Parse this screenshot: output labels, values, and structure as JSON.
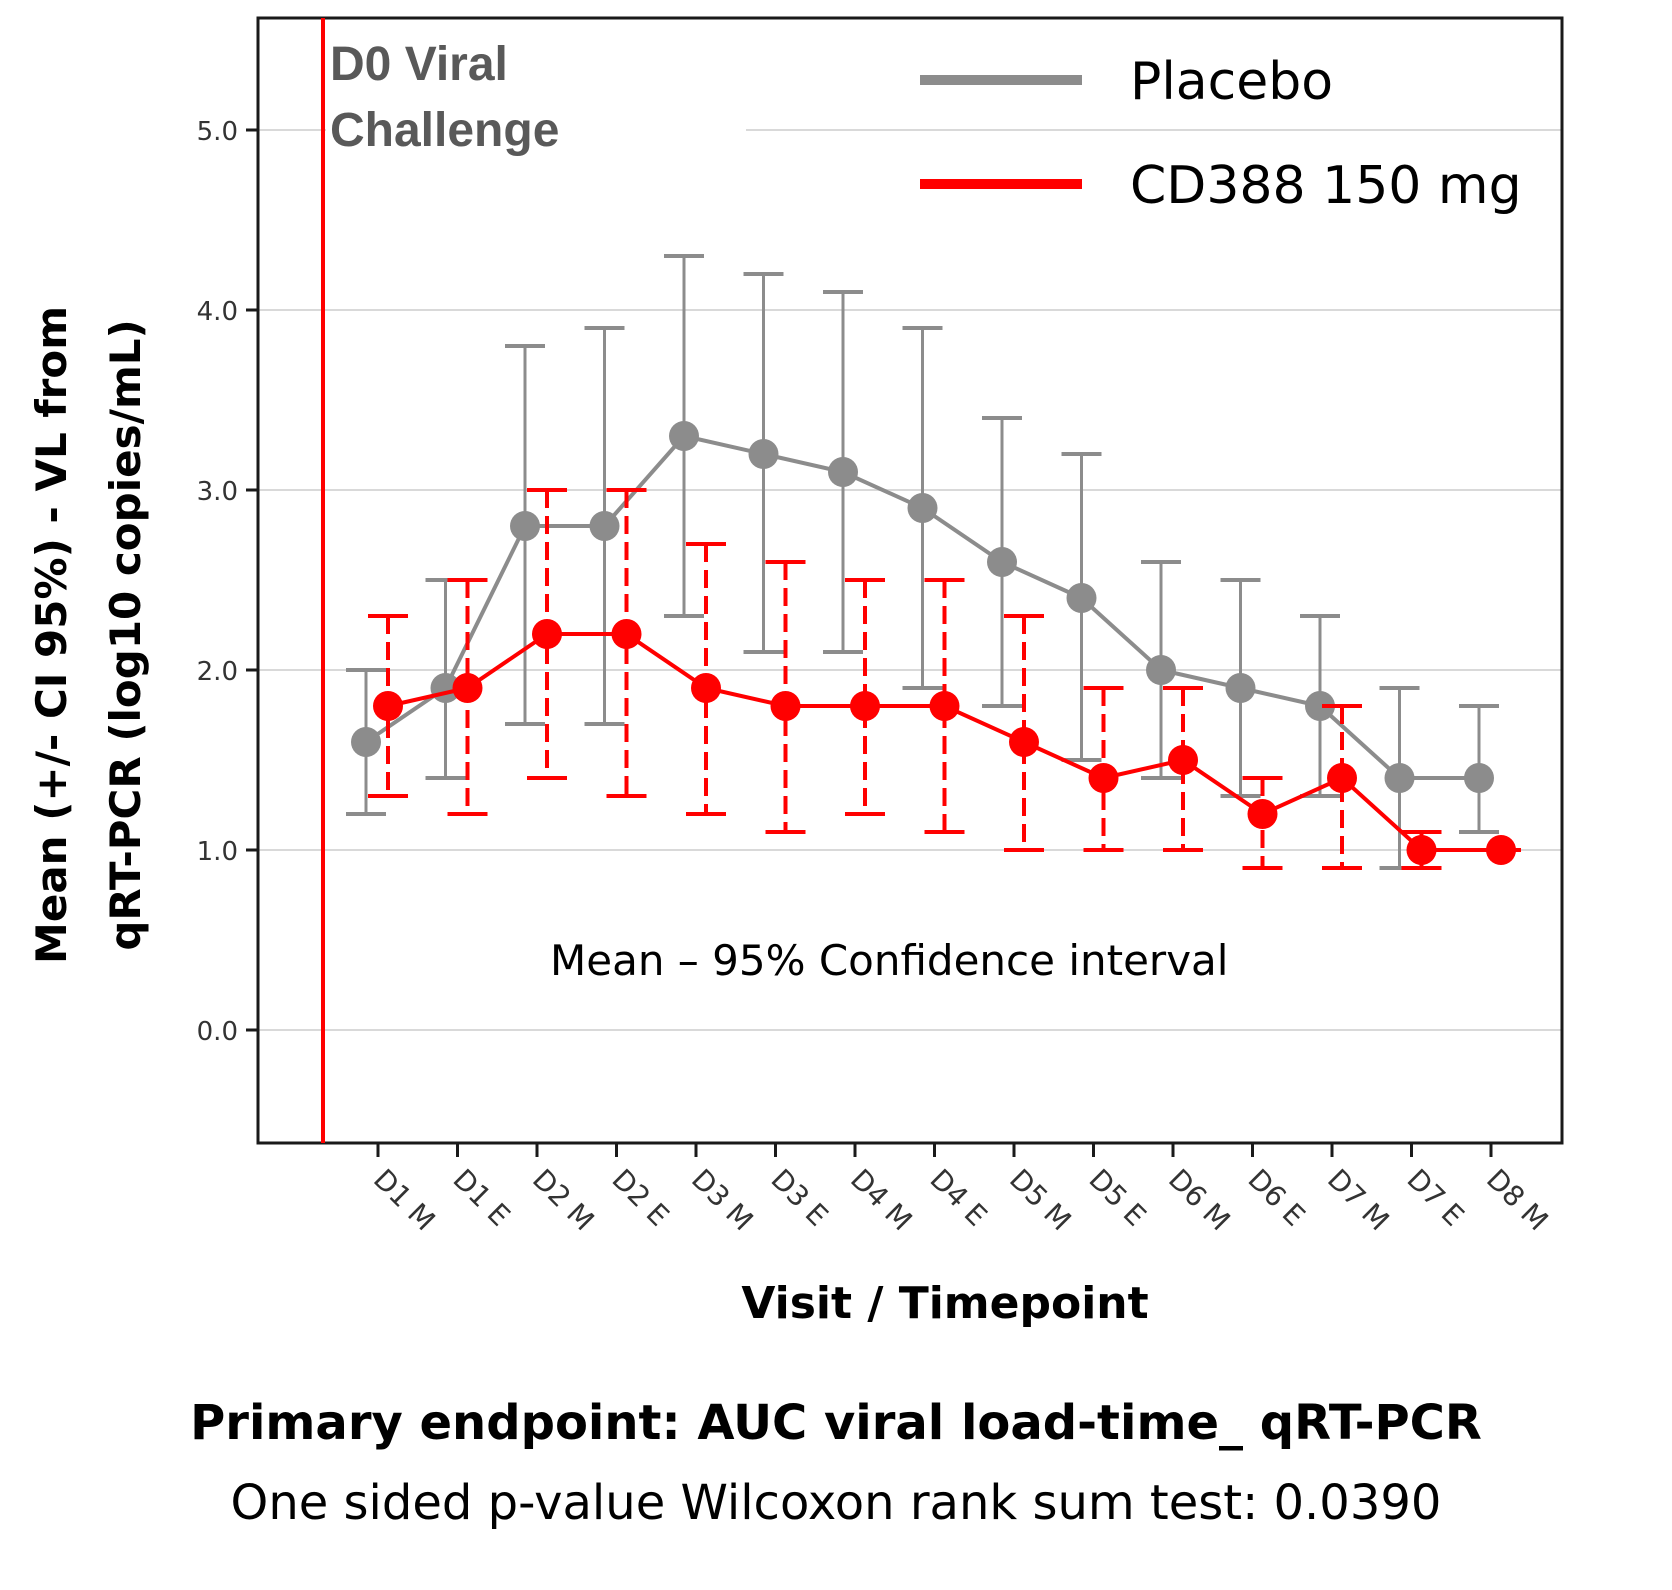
{
  "chart_data": {
    "type": "line",
    "annotation_top": "D0 Viral\nChallenge",
    "annotation_mid": "Mean – 95% Confidence interval",
    "xlabel": "Visit / Timepoint",
    "ylabel_line1": "Mean (+/- CI 95%) - VL from",
    "ylabel_line2": "qRT-PCR (log10 copies/mL)",
    "ylim": [
      -0.6,
      5.7
    ],
    "yticks": [
      0.0,
      1.0,
      2.0,
      3.0,
      4.0,
      5.0
    ],
    "ytick_labels": [
      "0.0",
      "1.0",
      "2.0",
      "3.0",
      "4.0",
      "5.0"
    ],
    "categories": [
      "D1 M",
      "D1 E",
      "D2 M",
      "D2 E",
      "D3 M",
      "D3 E",
      "D4 M",
      "D4 E",
      "D5 M",
      "D5 E",
      "D6 M",
      "D6 E",
      "D7 M",
      "D7 E",
      "D8 M"
    ],
    "legend_position": "top-right",
    "series": [
      {
        "name": "Placebo",
        "color": "#8c8c8c",
        "values": [
          1.6,
          1.9,
          2.8,
          2.8,
          3.3,
          3.2,
          3.1,
          2.9,
          2.6,
          2.4,
          2.0,
          1.9,
          1.8,
          1.4,
          1.4
        ],
        "ci_low": [
          1.2,
          1.4,
          1.7,
          1.7,
          2.3,
          2.1,
          2.1,
          1.9,
          1.8,
          1.5,
          1.4,
          1.3,
          1.3,
          0.9,
          1.1
        ],
        "ci_high": [
          2.0,
          2.5,
          3.8,
          3.9,
          4.3,
          4.2,
          4.1,
          3.9,
          3.4,
          3.2,
          2.6,
          2.5,
          2.3,
          1.9,
          1.8
        ]
      },
      {
        "name": "CD388 150 mg",
        "color": "#ff0000",
        "values": [
          1.8,
          1.9,
          2.2,
          2.2,
          1.9,
          1.8,
          1.8,
          1.8,
          1.6,
          1.4,
          1.5,
          1.2,
          1.4,
          1.0,
          1.0
        ],
        "ci_low": [
          1.3,
          1.2,
          1.4,
          1.3,
          1.2,
          1.1,
          1.2,
          1.1,
          1.0,
          1.0,
          1.0,
          0.9,
          0.9,
          0.9,
          1.0
        ],
        "ci_high": [
          2.3,
          2.5,
          3.0,
          3.0,
          2.7,
          2.6,
          2.5,
          2.5,
          2.3,
          1.9,
          1.9,
          1.4,
          1.8,
          1.1,
          1.0
        ]
      }
    ]
  },
  "caption": {
    "title": "Primary endpoint: AUC viral load-time_ qRT-PCR",
    "subtitle": "One sided p-value Wilcoxon rank sum test: 0.0390"
  }
}
